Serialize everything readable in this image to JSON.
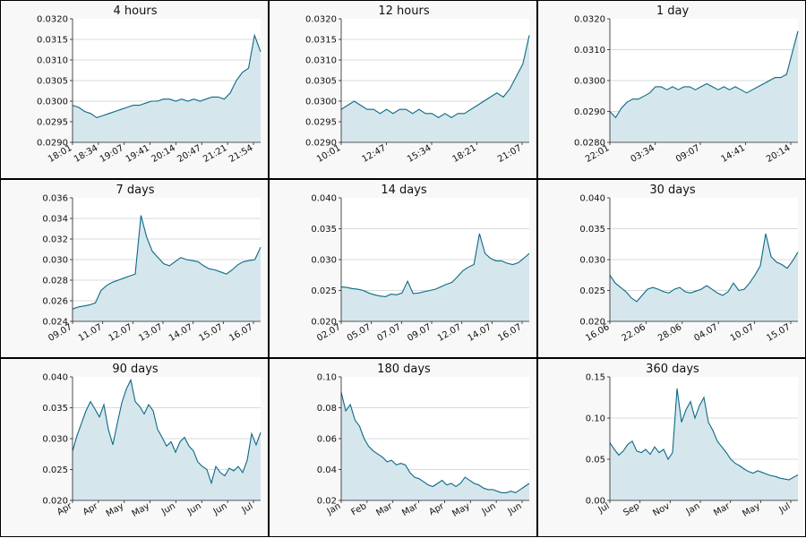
{
  "colors": {
    "line": "#0b6a86",
    "fill": "#d6e6ed",
    "plot_bg": "#ffffff",
    "panel_bg": "#f8f8f8",
    "grid": "#b0b8bc"
  },
  "chart_data": [
    {
      "type": "area",
      "title": "4 hours",
      "ylim": [
        0.029,
        0.032
      ],
      "yticks": [
        "0.0290",
        "0.0295",
        "0.0300",
        "0.0305",
        "0.0310",
        "0.0315",
        "0.0320"
      ],
      "xticks": [
        "18:01",
        "18:34",
        "19:07",
        "19:41",
        "20:14",
        "20:47",
        "21:21",
        "21:54"
      ],
      "grid": true,
      "series": [
        {
          "values": [
            0.0299,
            0.02985,
            0.02975,
            0.0297,
            0.0296,
            0.02965,
            0.0297,
            0.02975,
            0.0298,
            0.02985,
            0.0299,
            0.0299,
            0.02995,
            0.03,
            0.03,
            0.03005,
            0.03005,
            0.03,
            0.03005,
            0.03,
            0.03005,
            0.03,
            0.03005,
            0.0301,
            0.0301,
            0.03005,
            0.0302,
            0.0305,
            0.0307,
            0.0308,
            0.0316,
            0.0312
          ]
        }
      ]
    },
    {
      "type": "area",
      "title": "12 hours",
      "ylim": [
        0.029,
        0.032
      ],
      "yticks": [
        "0.0290",
        "0.0295",
        "0.0300",
        "0.0305",
        "0.0310",
        "0.0315",
        "0.0320"
      ],
      "xticks": [
        "10:01",
        "12:47",
        "15:34",
        "18:21",
        "21:07"
      ],
      "grid": true,
      "series": [
        {
          "values": [
            0.0298,
            0.0299,
            0.03,
            0.0299,
            0.0298,
            0.0298,
            0.0297,
            0.0298,
            0.0297,
            0.0298,
            0.0298,
            0.0297,
            0.0298,
            0.0297,
            0.0297,
            0.0296,
            0.0297,
            0.0296,
            0.0297,
            0.0297,
            0.0298,
            0.0299,
            0.03,
            0.0301,
            0.0302,
            0.0301,
            0.0303,
            0.0306,
            0.0309,
            0.0316
          ]
        }
      ]
    },
    {
      "type": "area",
      "title": "1 day",
      "ylim": [
        0.028,
        0.032
      ],
      "yticks": [
        "0.0280",
        "0.0290",
        "0.0300",
        "0.0310",
        "0.0320"
      ],
      "xticks": [
        "22:01",
        "03:34",
        "09:07",
        "14:41",
        "20:14"
      ],
      "grid": true,
      "series": [
        {
          "values": [
            0.029,
            0.0288,
            0.0291,
            0.0293,
            0.0294,
            0.0294,
            0.0295,
            0.0296,
            0.0298,
            0.0298,
            0.0297,
            0.0298,
            0.0297,
            0.0298,
            0.0298,
            0.0297,
            0.0298,
            0.0299,
            0.0298,
            0.0297,
            0.0298,
            0.0297,
            0.0298,
            0.0297,
            0.0296,
            0.0297,
            0.0298,
            0.0299,
            0.03,
            0.0301,
            0.0301,
            0.0302,
            0.0309,
            0.0316
          ]
        }
      ]
    },
    {
      "type": "area",
      "title": "7 days",
      "ylim": [
        0.024,
        0.036
      ],
      "yticks": [
        "0.024",
        "0.026",
        "0.028",
        "0.030",
        "0.032",
        "0.034",
        "0.036"
      ],
      "xticks": [
        "09.07",
        "11.07",
        "12.07",
        "13.07",
        "14.07",
        "15.07",
        "16.07"
      ],
      "grid": true,
      "series": [
        {
          "values": [
            0.0252,
            0.0254,
            0.0255,
            0.0256,
            0.0258,
            0.027,
            0.0275,
            0.0278,
            0.028,
            0.0282,
            0.0284,
            0.0286,
            0.0343,
            0.0322,
            0.0308,
            0.0302,
            0.0296,
            0.0294,
            0.0298,
            0.0302,
            0.03,
            0.0299,
            0.0298,
            0.0294,
            0.0291,
            0.029,
            0.0288,
            0.0286,
            0.029,
            0.0295,
            0.0298,
            0.0299,
            0.03,
            0.0312
          ]
        }
      ]
    },
    {
      "type": "area",
      "title": "14 days",
      "ylim": [
        0.02,
        0.04
      ],
      "yticks": [
        "0.020",
        "0.025",
        "0.030",
        "0.035",
        "0.040"
      ],
      "xticks": [
        "02.07",
        "05.07",
        "07.07",
        "09.07",
        "12.07",
        "14.07",
        "16.07"
      ],
      "grid": true,
      "series": [
        {
          "values": [
            0.0256,
            0.0255,
            0.0253,
            0.0252,
            0.025,
            0.0246,
            0.0243,
            0.0241,
            0.024,
            0.0244,
            0.0243,
            0.0246,
            0.0265,
            0.0245,
            0.0246,
            0.0248,
            0.025,
            0.0252,
            0.0256,
            0.026,
            0.0263,
            0.0272,
            0.0282,
            0.0288,
            0.0292,
            0.0342,
            0.031,
            0.0302,
            0.0298,
            0.0298,
            0.0294,
            0.0292,
            0.0295,
            0.0302,
            0.031
          ]
        }
      ]
    },
    {
      "type": "area",
      "title": "30 days",
      "ylim": [
        0.02,
        0.04
      ],
      "yticks": [
        "0.020",
        "0.025",
        "0.030",
        "0.035",
        "0.040"
      ],
      "xticks": [
        "16.06",
        "22.06",
        "28.06",
        "04.07",
        "10.07",
        "15.07"
      ],
      "grid": true,
      "series": [
        {
          "values": [
            0.0275,
            0.0262,
            0.0255,
            0.0248,
            0.0238,
            0.0232,
            0.0242,
            0.0252,
            0.0255,
            0.0252,
            0.0248,
            0.0246,
            0.0252,
            0.0255,
            0.0248,
            0.0246,
            0.0249,
            0.0252,
            0.0258,
            0.0252,
            0.0246,
            0.0242,
            0.0248,
            0.0262,
            0.025,
            0.0252,
            0.0262,
            0.0275,
            0.029,
            0.0342,
            0.0305,
            0.0296,
            0.0292,
            0.0286,
            0.0298,
            0.0312
          ]
        }
      ]
    },
    {
      "type": "area",
      "title": "90 days",
      "ylim": [
        0.02,
        0.04
      ],
      "yticks": [
        "0.020",
        "0.025",
        "0.030",
        "0.035",
        "0.040"
      ],
      "xticks": [
        "Apr",
        "Apr",
        "May",
        "May",
        "Jun",
        "Jun",
        "Jun",
        "Jul"
      ],
      "grid": true,
      "series": [
        {
          "values": [
            0.028,
            0.0305,
            0.0325,
            0.0345,
            0.036,
            0.0348,
            0.0335,
            0.0355,
            0.0315,
            0.029,
            0.0325,
            0.0358,
            0.038,
            0.0395,
            0.036,
            0.0352,
            0.034,
            0.0355,
            0.0345,
            0.0315,
            0.0302,
            0.0288,
            0.0295,
            0.0278,
            0.0295,
            0.0302,
            0.0288,
            0.028,
            0.0262,
            0.0255,
            0.025,
            0.0228,
            0.0255,
            0.0245,
            0.024,
            0.0252,
            0.0248,
            0.0255,
            0.0245,
            0.0265,
            0.0308,
            0.029,
            0.031
          ]
        }
      ]
    },
    {
      "type": "area",
      "title": "180 days",
      "ylim": [
        0.02,
        0.1
      ],
      "yticks": [
        "0.02",
        "0.04",
        "0.06",
        "0.08",
        "0.10"
      ],
      "xticks": [
        "Jan",
        "Feb",
        "Mar",
        "Mar",
        "Apr",
        "May",
        "Jun",
        "Jun"
      ],
      "grid": true,
      "series": [
        {
          "values": [
            0.09,
            0.078,
            0.082,
            0.072,
            0.068,
            0.06,
            0.055,
            0.052,
            0.05,
            0.048,
            0.045,
            0.046,
            0.043,
            0.044,
            0.043,
            0.038,
            0.035,
            0.034,
            0.032,
            0.03,
            0.029,
            0.031,
            0.033,
            0.03,
            0.031,
            0.029,
            0.031,
            0.035,
            0.033,
            0.031,
            0.03,
            0.028,
            0.027,
            0.027,
            0.026,
            0.025,
            0.025,
            0.026,
            0.025,
            0.027,
            0.029,
            0.031
          ]
        }
      ]
    },
    {
      "type": "area",
      "title": "360 days",
      "ylim": [
        0.0,
        0.15
      ],
      "yticks": [
        "0.00",
        "0.05",
        "0.10",
        "0.15"
      ],
      "xticks": [
        "Jul",
        "Sep",
        "Nov",
        "Jan",
        "Mar",
        "May",
        "Jul"
      ],
      "grid": true,
      "series": [
        {
          "values": [
            0.07,
            0.062,
            0.055,
            0.06,
            0.068,
            0.072,
            0.06,
            0.058,
            0.062,
            0.056,
            0.065,
            0.058,
            0.062,
            0.05,
            0.058,
            0.136,
            0.095,
            0.11,
            0.12,
            0.1,
            0.115,
            0.125,
            0.095,
            0.085,
            0.072,
            0.065,
            0.058,
            0.05,
            0.045,
            0.042,
            0.038,
            0.035,
            0.033,
            0.036,
            0.034,
            0.032,
            0.03,
            0.029,
            0.027,
            0.026,
            0.025,
            0.028,
            0.031
          ]
        }
      ]
    }
  ]
}
